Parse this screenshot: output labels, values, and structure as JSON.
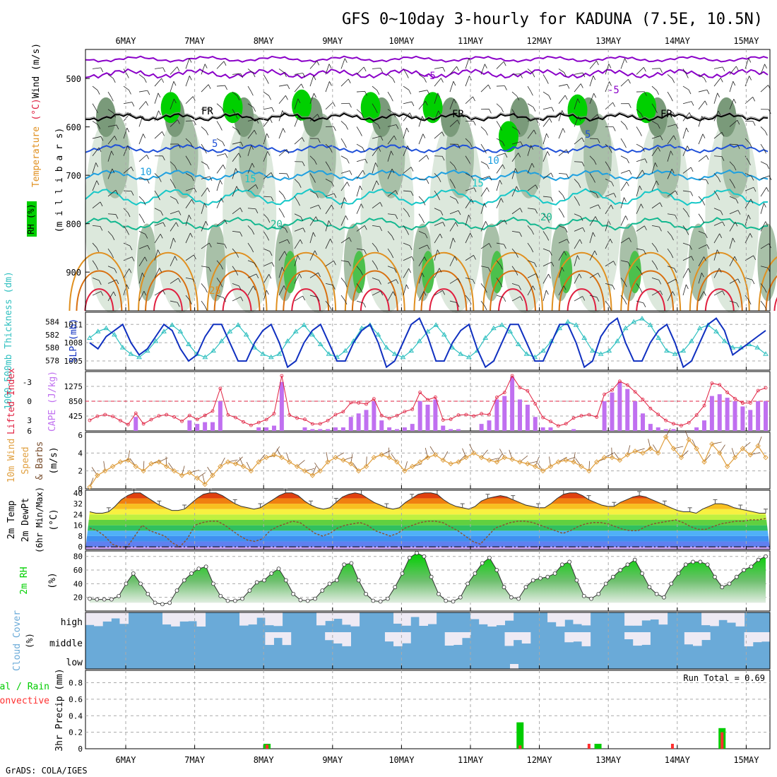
{
  "title": "GFS 0~10day 3-hourly for KADUNA (7.5E, 10.5N)",
  "footer": "GrADS: COLA/IGES",
  "x_dates": [
    "6MAY",
    "7MAY",
    "8MAY",
    "9MAY",
    "10MAY",
    "11MAY",
    "12MAY",
    "13MAY",
    "14MAY",
    "15MAY"
  ],
  "colors": {
    "purple": "#8a00c8",
    "blue": "#1f50d8",
    "lightblue": "#1ea0e0",
    "cyan": "#17c8c8",
    "teal": "#14b890",
    "orange": "#e09020",
    "red": "#e02040",
    "green": "#00d000",
    "rh_dark": "#7a9a7a",
    "rh_mid": "#a8c0a8",
    "rh_light": "#dce8dc",
    "cape_bar": "#c070f0",
    "slp": "#1030c0",
    "thick": "#30c0c0",
    "wind_line": "#e0a040",
    "cloud_blue": "#6aaad8",
    "cloud_white": "#eeeaf4",
    "precip_total": "#00cc00",
    "precip_conv": "#ff3030"
  },
  "chart_data": [
    {
      "type": "heatmap",
      "name": "vertical_profile",
      "ylabel_parts": [
        "RH (%)",
        "Temperature",
        "(°C)",
        "Wind (m/s)"
      ],
      "ylabel_units": "(m i l l i b a r s)",
      "y_ticks": [
        500,
        600,
        700,
        800,
        900
      ],
      "ylim": [
        440,
        980
      ],
      "contour_labels": [
        {
          "text": "-5",
          "color": "purple"
        },
        {
          "text": "-5",
          "color": "purple"
        },
        {
          "text": "FR",
          "color": "black"
        },
        {
          "text": "FR",
          "color": "black"
        },
        {
          "text": "FR",
          "color": "black"
        },
        {
          "text": "5",
          "color": "blue"
        },
        {
          "text": "5",
          "color": "blue"
        },
        {
          "text": "10",
          "color": "lightblue"
        },
        {
          "text": "10",
          "color": "lightblue"
        },
        {
          "text": "15",
          "color": "cyan"
        },
        {
          "text": "15",
          "color": "cyan"
        },
        {
          "text": "20",
          "color": "teal"
        },
        {
          "text": "20",
          "color": "teal"
        },
        {
          "text": "25",
          "color": "orange"
        }
      ]
    },
    {
      "type": "line",
      "name": "slp_thickness",
      "ylabel_left": "1000-500mb Thickness (dm)",
      "ylabel_right": "SLP (mb)",
      "thick_ticks": [
        578,
        580,
        582,
        584
      ],
      "slp_ticks": [
        1005,
        1008,
        1011
      ],
      "ylim_slp": [
        1003.5,
        1013
      ],
      "slp": [
        1008,
        1007,
        1009,
        1010,
        1011,
        1008,
        1006,
        1007,
        1009,
        1011,
        1010,
        1007,
        1005,
        1006,
        1009,
        1011,
        1011,
        1008,
        1005,
        1005,
        1008,
        1010,
        1011,
        1008,
        1004,
        1005,
        1008,
        1010,
        1011,
        1008,
        1005,
        1005,
        1008,
        1010,
        1011,
        1008,
        1004,
        1005,
        1008,
        1011,
        1012,
        1009,
        1005,
        1005,
        1008,
        1010,
        1011,
        1007,
        1004,
        1005,
        1008,
        1011,
        1011,
        1008,
        1005,
        1005,
        1008,
        1011,
        1011,
        1008,
        1004,
        1005,
        1009,
        1011,
        1012,
        1008,
        1005,
        1005,
        1008,
        1010,
        1011,
        1008,
        1004,
        1005,
        1008,
        1011,
        1012,
        1010,
        1006,
        1007,
        1008,
        1009,
        1010
      ],
      "thickness": [
        581.5,
        582.5,
        583,
        582,
        580,
        579,
        578.5,
        579.5,
        581,
        582.5,
        583.5,
        582.5,
        580.5,
        579,
        578.5,
        579.5,
        581,
        582.5,
        583.5,
        582,
        580,
        579,
        578.5,
        579,
        581,
        582.5,
        583.5,
        582,
        580.5,
        579,
        578.5,
        579.5,
        581,
        583,
        583.5,
        582,
        580,
        579,
        578.5,
        579.5,
        581,
        582.5,
        583.5,
        582,
        580,
        579,
        578.5,
        579.5,
        581.5,
        583,
        583.5,
        582.5,
        580.5,
        579,
        578.5,
        579.5,
        581,
        583,
        584,
        583.5,
        581.5,
        579.5,
        579,
        579.5,
        581,
        583,
        584,
        584.5,
        583.5,
        581.5,
        579.5,
        579,
        579.5,
        581,
        583,
        583.5,
        582.5,
        581,
        580,
        580,
        580.5,
        580,
        579
      ]
    },
    {
      "type": "bar",
      "name": "cape_li",
      "ylabel_left": "Lifted Index",
      "ylabel_right": "CAPE (J/kg)",
      "li_ticks": [
        "-3",
        "0",
        "3",
        "6"
      ],
      "cape_ticks": [
        425,
        850,
        1275
      ],
      "ylim_cape": [
        0,
        1700
      ],
      "cape": [
        0,
        0,
        0,
        0,
        0,
        0,
        400,
        0,
        0,
        0,
        0,
        0,
        0,
        300,
        200,
        250,
        250,
        850,
        0,
        0,
        0,
        0,
        100,
        100,
        150,
        1400,
        0,
        0,
        100,
        50,
        50,
        50,
        100,
        100,
        400,
        500,
        600,
        850,
        300,
        100,
        50,
        100,
        200,
        850,
        750,
        900,
        150,
        50,
        50,
        0,
        0,
        200,
        300,
        900,
        1000,
        1550,
        900,
        750,
        400,
        100,
        100,
        0,
        0,
        50,
        0,
        0,
        0,
        850,
        1100,
        1400,
        1200,
        850,
        500,
        200,
        100,
        50,
        50,
        0,
        0,
        100,
        300,
        1000,
        1050,
        950,
        850,
        700,
        600,
        850,
        850
      ]
    },
    {
      "type": "line",
      "name": "wind10m",
      "ylabel_parts": [
        "10m Wind",
        "Speed",
        "& Barbs",
        "(m/s)"
      ],
      "y_ticks": [
        0,
        2,
        4,
        6
      ],
      "ylim": [
        0,
        6
      ],
      "speed": [
        0.2,
        1.5,
        2.0,
        2.5,
        3.0,
        3.2,
        2.5,
        2.0,
        2.8,
        3.0,
        2.5,
        2.0,
        1.5,
        1.8,
        1.2,
        0.5,
        1.5,
        2.5,
        3.0,
        2.8,
        2.5,
        2.0,
        3.0,
        3.5,
        3.8,
        3.5,
        3.0,
        2.5,
        2.0,
        1.5,
        2.0,
        3.0,
        3.5,
        3.2,
        2.8,
        2.0,
        2.5,
        3.5,
        3.8,
        3.5,
        3.0,
        2.0,
        2.5,
        3.0,
        3.5,
        3.8,
        3.2,
        2.8,
        3.0,
        3.5,
        4.0,
        3.5,
        3.2,
        3.0,
        3.5,
        3.3,
        3.0,
        2.8,
        2.5,
        2.0,
        2.5,
        3.0,
        3.2,
        3.0,
        2.5,
        2.0,
        3.0,
        3.5,
        3.5,
        3.2,
        3.8,
        4.2,
        4.0,
        4.5,
        4.0,
        5.8,
        4.5,
        3.5,
        5.5,
        4.5,
        3.0,
        5.0,
        4.0,
        2.5,
        3.5,
        4.5,
        3.8,
        4.8,
        3.5
      ]
    },
    {
      "type": "area",
      "name": "temp2m",
      "ylabel_parts": [
        "2m Temp",
        "2m DewPt",
        "(6hr Min/Max)",
        "(°C)"
      ],
      "y_ticks": [
        0,
        8,
        16,
        24,
        32,
        40
      ],
      "ylim": [
        -2,
        42
      ],
      "temp": [
        26,
        25,
        25,
        26,
        30,
        35,
        38,
        40,
        40,
        37,
        34,
        31,
        29,
        27,
        27,
        28,
        32,
        36,
        39,
        40,
        40,
        38,
        35,
        32,
        30,
        29,
        28,
        29,
        32,
        35,
        38,
        40,
        40,
        38,
        34,
        31,
        29,
        28,
        29,
        33,
        37,
        39,
        40,
        39,
        36,
        33,
        31,
        29,
        28,
        29,
        33,
        36,
        39,
        40,
        40,
        39,
        35,
        32,
        30,
        29,
        28,
        30,
        34,
        36,
        37,
        38,
        37,
        35,
        33,
        31,
        30,
        29,
        29,
        32,
        36,
        39,
        40,
        40,
        38,
        35,
        33,
        31,
        30,
        30,
        33,
        35,
        37,
        38,
        37,
        35,
        33,
        31,
        29,
        27,
        26,
        26,
        25,
        28,
        30,
        32,
        32,
        31,
        29,
        28,
        27,
        26,
        25,
        25
      ],
      "dew": [
        14,
        12,
        8,
        2,
        0,
        0,
        8,
        16,
        12,
        10,
        8,
        3,
        0,
        6,
        16,
        18,
        19,
        19,
        16,
        12,
        8,
        5,
        4,
        6,
        12,
        15,
        17,
        19,
        18,
        14,
        10,
        8,
        10,
        14,
        16,
        17,
        18,
        16,
        12,
        10,
        8,
        10,
        14,
        16,
        18,
        19,
        19,
        18,
        15,
        12,
        8,
        4,
        2,
        8,
        14,
        16,
        18,
        19,
        19,
        18,
        16,
        14,
        12,
        10,
        12,
        15,
        17,
        18,
        18,
        17,
        15,
        13,
        12,
        12,
        15,
        17,
        18,
        19,
        20,
        18,
        15,
        13,
        13,
        15,
        17,
        18,
        19,
        19,
        20,
        20,
        21
      ]
    },
    {
      "type": "area",
      "name": "rh2m",
      "ylabel_parts": [
        "2m RH",
        "(%)"
      ],
      "y_ticks": [
        20,
        40,
        60,
        80
      ],
      "ylim": [
        0,
        88
      ],
      "rh": [
        18,
        17,
        17,
        17,
        22,
        40,
        55,
        40,
        25,
        12,
        10,
        12,
        30,
        45,
        55,
        62,
        65,
        40,
        22,
        15,
        15,
        18,
        30,
        42,
        45,
        55,
        62,
        45,
        25,
        16,
        15,
        18,
        30,
        40,
        45,
        68,
        70,
        45,
        25,
        15,
        14,
        18,
        35,
        55,
        78,
        85,
        80,
        50,
        25,
        15,
        14,
        20,
        40,
        55,
        70,
        78,
        60,
        35,
        20,
        18,
        35,
        45,
        48,
        50,
        55,
        68,
        72,
        45,
        22,
        18,
        25,
        40,
        50,
        60,
        68,
        75,
        55,
        35,
        25,
        20,
        40,
        55,
        68,
        72,
        72,
        68,
        50,
        35,
        40,
        50,
        60,
        65,
        75,
        80
      ]
    },
    {
      "type": "table",
      "name": "cloud_cover",
      "ylabel": "Cloud Cover",
      "yunit": "(%)",
      "levels": [
        "high",
        "middle",
        "low"
      ]
    },
    {
      "type": "bar",
      "name": "precip",
      "ylabel_left": "Total / Rain",
      "ylabel_left2": "Convective",
      "ylabel_right": "3hr Precip (mm)",
      "y_ticks": [
        0,
        0.2,
        0.4,
        0.6,
        0.8
      ],
      "ylim": [
        0,
        0.95
      ],
      "run_total_label": "Run Total = 0.69",
      "bars": [
        {
          "date_index": 2.05,
          "total": 0.06,
          "conv": 0.05
        },
        {
          "date_index": 5.72,
          "total": 0.32,
          "conv": 0.04
        },
        {
          "date_index": 6.72,
          "total": 0.0,
          "conv": 0.06
        },
        {
          "date_index": 6.85,
          "total": 0.06,
          "conv": 0.0
        },
        {
          "date_index": 7.93,
          "total": 0.0,
          "conv": 0.06
        },
        {
          "date_index": 8.65,
          "total": 0.25,
          "conv": 0.2
        }
      ]
    }
  ]
}
